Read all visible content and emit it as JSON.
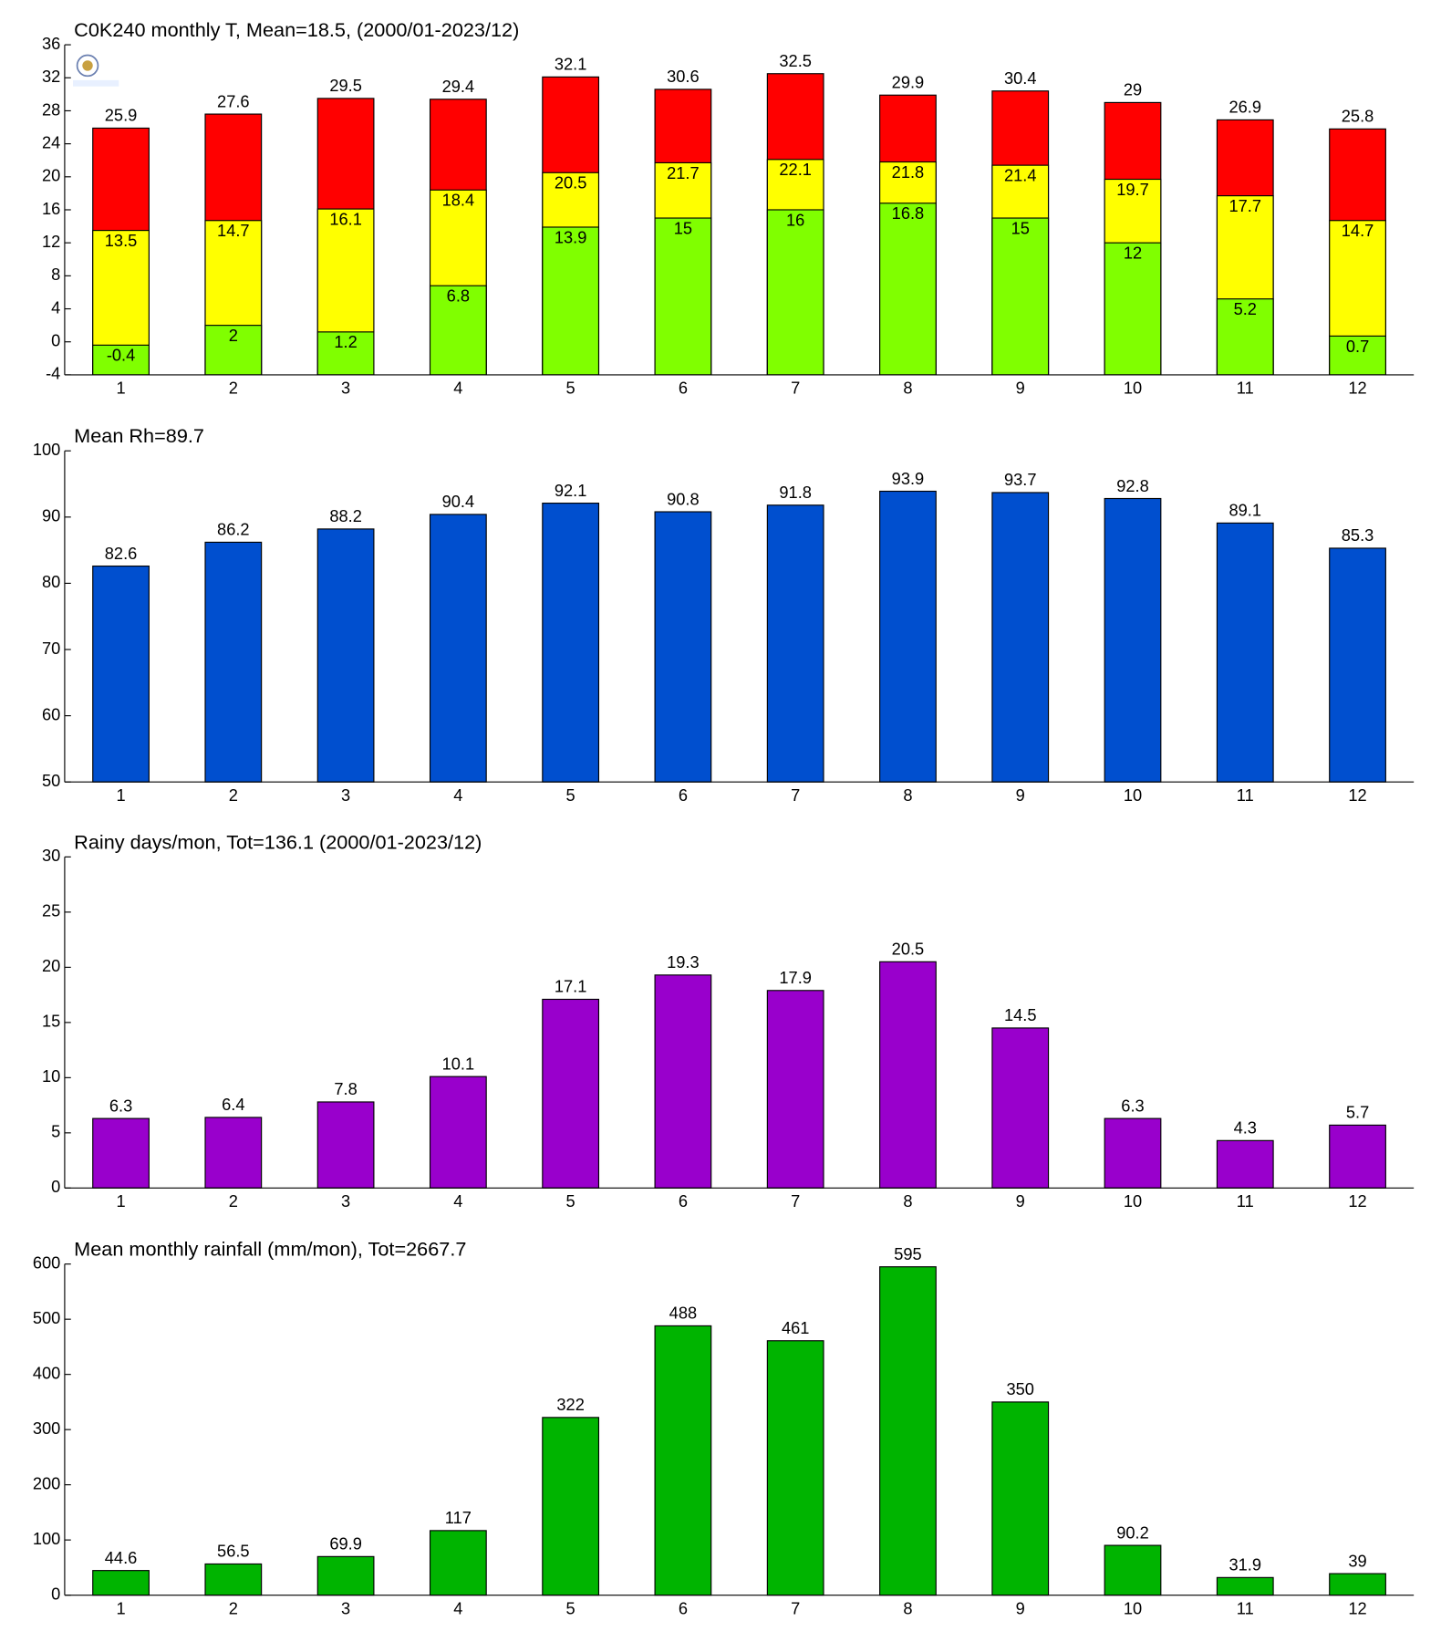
{
  "chart_data": [
    {
      "type": "bar",
      "barmode": "overlay",
      "title": "C0K240 monthly T, Mean=18.5, (2000/01-2023/12)",
      "categories": [
        "1",
        "2",
        "3",
        "4",
        "5",
        "6",
        "7",
        "8",
        "9",
        "10",
        "11",
        "12"
      ],
      "series": [
        {
          "color": "#ff0000",
          "values": [
            25.9,
            27.6,
            29.5,
            29.4,
            32.1,
            30.6,
            32.5,
            29.9,
            30.4,
            29,
            26.9,
            25.8
          ]
        },
        {
          "color": "#ffff00",
          "values": [
            13.5,
            14.7,
            16.1,
            18.4,
            20.5,
            21.7,
            22.1,
            21.8,
            21.4,
            19.7,
            17.7,
            14.7
          ]
        },
        {
          "color": "#80ff00",
          "values": [
            -0.4,
            2,
            1.2,
            6.8,
            13.9,
            15,
            16,
            16.8,
            15,
            12,
            5.2,
            0.7
          ]
        }
      ],
      "ylim": [
        -4,
        36
      ],
      "yticks": [
        -4,
        0,
        4,
        8,
        12,
        16,
        20,
        24,
        28,
        32,
        36
      ]
    },
    {
      "type": "bar",
      "title": "Mean Rh=89.7",
      "categories": [
        "1",
        "2",
        "3",
        "4",
        "5",
        "6",
        "7",
        "8",
        "9",
        "10",
        "11",
        "12"
      ],
      "series": [
        {
          "color": "#004fcf",
          "values": [
            82.6,
            86.2,
            88.2,
            90.4,
            92.1,
            90.8,
            91.8,
            93.9,
            93.7,
            92.8,
            89.1,
            85.3
          ]
        }
      ],
      "ylim": [
        50,
        100
      ],
      "yticks": [
        50,
        60,
        70,
        80,
        90,
        100
      ]
    },
    {
      "type": "bar",
      "title": "Rainy days/mon, Tot=136.1 (2000/01-2023/12)",
      "categories": [
        "1",
        "2",
        "3",
        "4",
        "5",
        "6",
        "7",
        "8",
        "9",
        "10",
        "11",
        "12"
      ],
      "series": [
        {
          "color": "#9900cc",
          "values": [
            6.3,
            6.4,
            7.8,
            10.1,
            17.1,
            19.3,
            17.9,
            20.5,
            14.5,
            6.3,
            4.3,
            5.7
          ]
        }
      ],
      "ylim": [
        0,
        30
      ],
      "yticks": [
        0,
        5,
        10,
        15,
        20,
        25,
        30
      ]
    },
    {
      "type": "bar",
      "title": "Mean monthly rainfall (mm/mon), Tot=2667.7",
      "categories": [
        "1",
        "2",
        "3",
        "4",
        "5",
        "6",
        "7",
        "8",
        "9",
        "10",
        "11",
        "12"
      ],
      "series": [
        {
          "color": "#00b400",
          "values": [
            44.6,
            56.5,
            69.9,
            117,
            322,
            488,
            461,
            595,
            350,
            90.2,
            31.9,
            39
          ]
        }
      ],
      "ylim": [
        0,
        600
      ],
      "yticks": [
        0,
        100,
        200,
        300,
        400,
        500,
        600
      ]
    }
  ]
}
